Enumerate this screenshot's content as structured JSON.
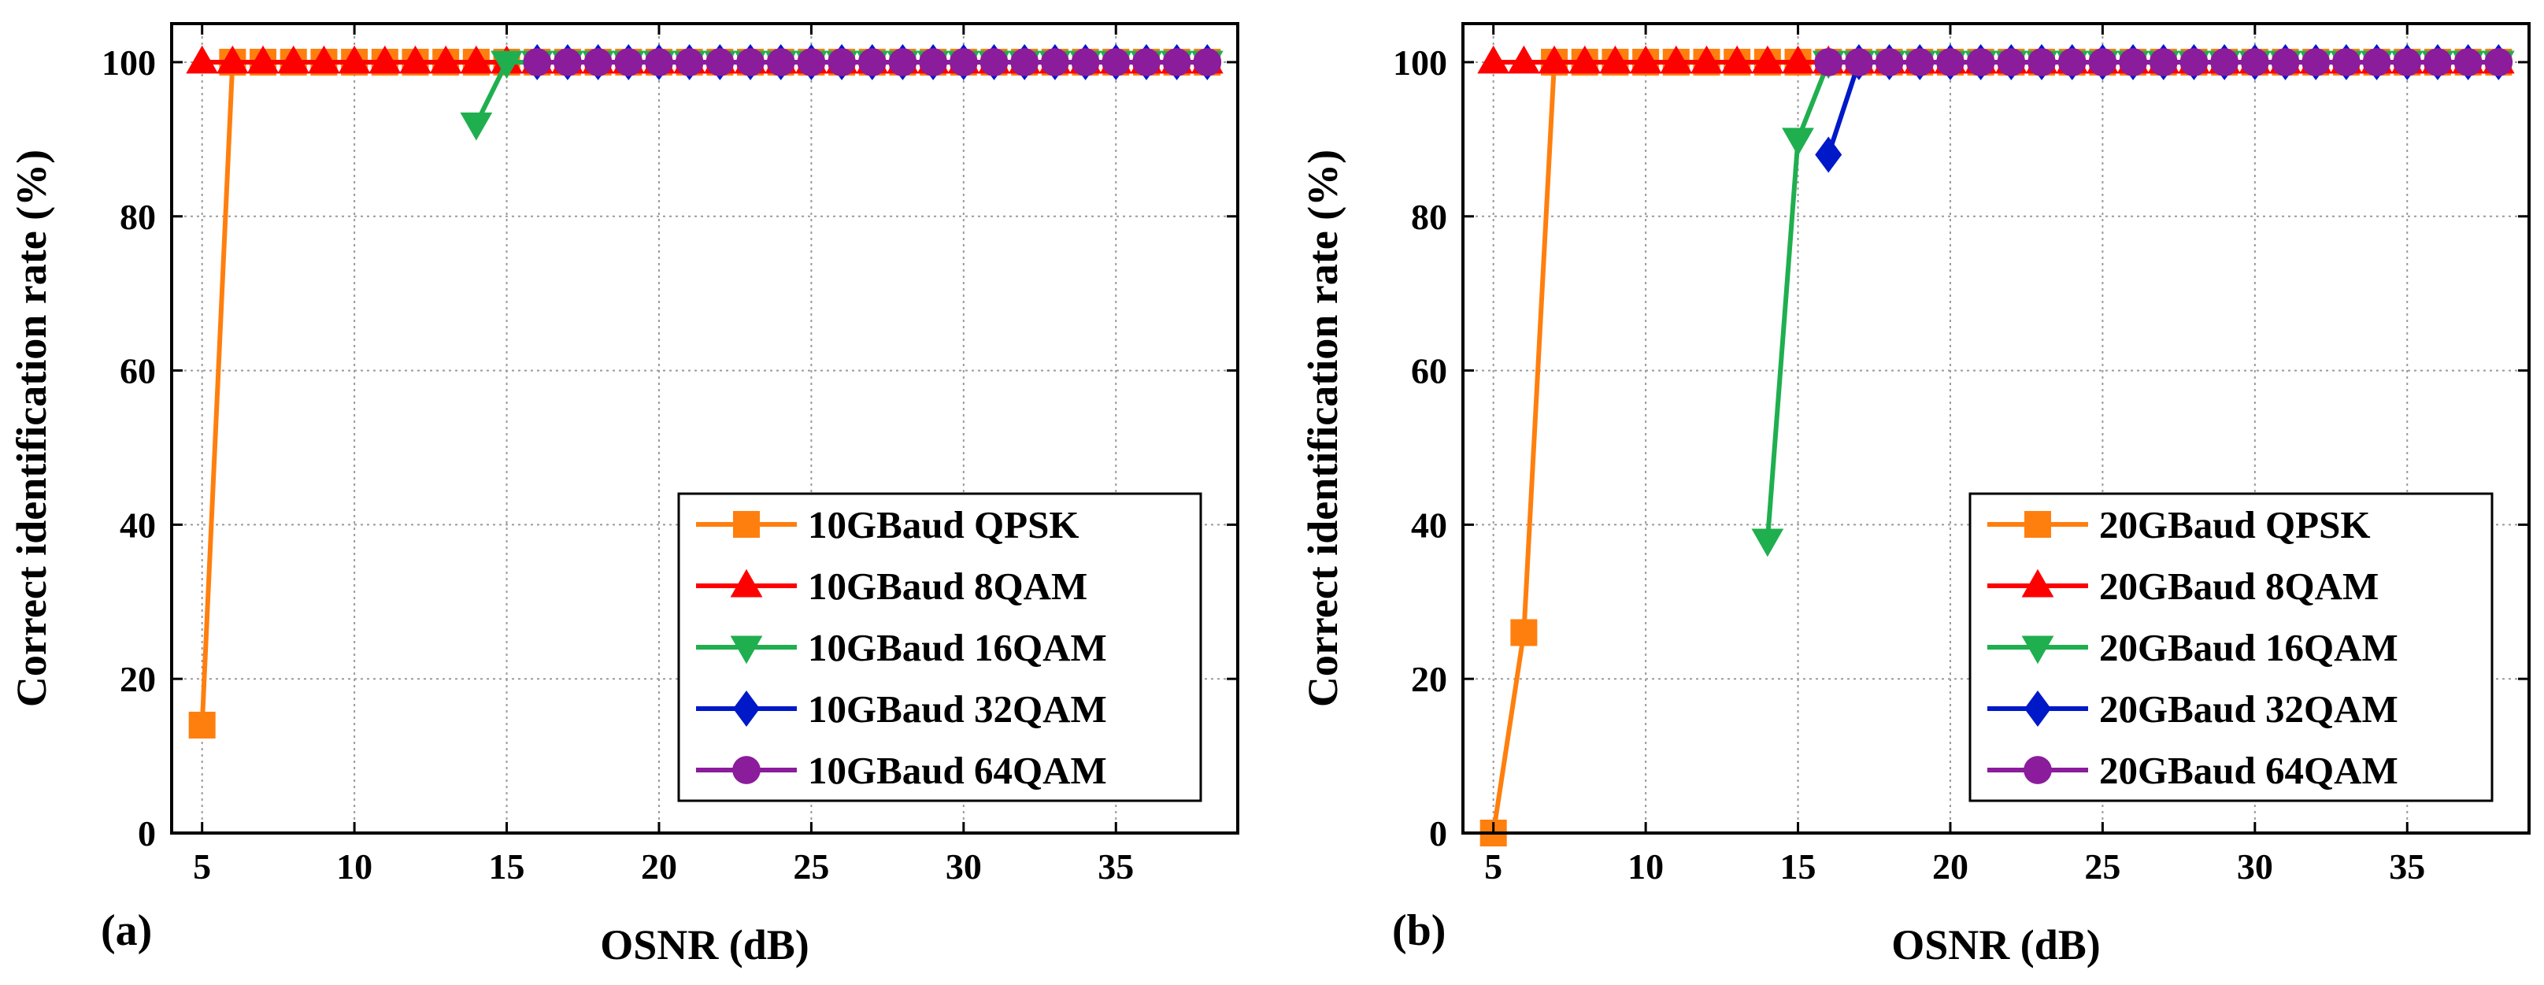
{
  "chart_data": [
    {
      "type": "line",
      "panel_label": "(a)",
      "xlabel": "OSNR (dB)",
      "ylabel": "Correct identification rate (%)",
      "xlim": [
        4,
        39
      ],
      "ylim": [
        0,
        105
      ],
      "xticks": [
        5,
        10,
        15,
        20,
        25,
        30,
        35
      ],
      "yticks": [
        0,
        20,
        40,
        60,
        80,
        100
      ],
      "grid": true,
      "legend_position": "lower-right",
      "series": [
        {
          "name": "10GBaud QPSK",
          "color": "#FF7F0E",
          "marker": "square",
          "x": [
            5,
            6,
            7,
            8,
            9,
            10,
            11,
            12,
            13,
            14,
            15,
            16,
            17,
            18,
            19,
            20,
            21,
            22,
            23,
            24,
            25,
            26,
            27,
            28,
            29,
            30,
            31,
            32,
            33,
            34,
            35,
            36,
            37,
            38
          ],
          "y": [
            14,
            100,
            100,
            100,
            100,
            100,
            100,
            100,
            100,
            100,
            100,
            100,
            100,
            100,
            100,
            100,
            100,
            100,
            100,
            100,
            100,
            100,
            100,
            100,
            100,
            100,
            100,
            100,
            100,
            100,
            100,
            100,
            100,
            100
          ]
        },
        {
          "name": "10GBaud 8QAM",
          "color": "#FF0000",
          "marker": "triangle-up",
          "x": [
            5,
            6,
            7,
            8,
            9,
            10,
            11,
            12,
            13,
            14,
            15,
            16,
            17,
            18,
            19,
            20,
            21,
            22,
            23,
            24,
            25,
            26,
            27,
            28,
            29,
            30,
            31,
            32,
            33,
            34,
            35,
            36,
            37,
            38
          ],
          "y": [
            100,
            100,
            100,
            100,
            100,
            100,
            100,
            100,
            100,
            100,
            100,
            100,
            100,
            100,
            100,
            100,
            100,
            100,
            100,
            100,
            100,
            100,
            100,
            100,
            100,
            100,
            100,
            100,
            100,
            100,
            100,
            100,
            100,
            100
          ]
        },
        {
          "name": "10GBaud 16QAM",
          "color": "#1FAF4F",
          "marker": "triangle-down",
          "x": [
            14,
            15,
            16,
            17,
            18,
            19,
            20,
            21,
            22,
            23,
            24,
            25,
            26,
            27,
            28,
            29,
            30,
            31,
            32,
            33,
            34,
            35,
            36,
            37,
            38
          ],
          "y": [
            92,
            100,
            100,
            100,
            100,
            100,
            100,
            100,
            100,
            100,
            100,
            100,
            100,
            100,
            100,
            100,
            100,
            100,
            100,
            100,
            100,
            100,
            100,
            100,
            100
          ]
        },
        {
          "name": "10GBaud 32QAM",
          "color": "#0019C8",
          "marker": "diamond",
          "x": [
            16,
            17,
            18,
            19,
            20,
            21,
            22,
            23,
            24,
            25,
            26,
            27,
            28,
            29,
            30,
            31,
            32,
            33,
            34,
            35,
            36,
            37,
            38
          ],
          "y": [
            100,
            100,
            100,
            100,
            100,
            100,
            100,
            100,
            100,
            100,
            100,
            100,
            100,
            100,
            100,
            100,
            100,
            100,
            100,
            100,
            100,
            100,
            100
          ]
        },
        {
          "name": "10GBaud 64QAM",
          "color": "#8B1C9C",
          "marker": "circle",
          "x": [
            16,
            17,
            18,
            19,
            20,
            21,
            22,
            23,
            24,
            25,
            26,
            27,
            28,
            29,
            30,
            31,
            32,
            33,
            34,
            35,
            36,
            37,
            38
          ],
          "y": [
            100,
            100,
            100,
            100,
            100,
            100,
            100,
            100,
            100,
            100,
            100,
            100,
            100,
            100,
            100,
            100,
            100,
            100,
            100,
            100,
            100,
            100,
            100
          ]
        }
      ]
    },
    {
      "type": "line",
      "panel_label": "(b)",
      "xlabel": "OSNR (dB)",
      "ylabel": "Correct identification rate (%)",
      "xlim": [
        4,
        39
      ],
      "ylim": [
        0,
        105
      ],
      "xticks": [
        5,
        10,
        15,
        20,
        25,
        30,
        35
      ],
      "yticks": [
        0,
        20,
        40,
        60,
        80,
        100
      ],
      "grid": true,
      "legend_position": "lower-right",
      "series": [
        {
          "name": "20GBaud QPSK",
          "color": "#FF7F0E",
          "marker": "square",
          "x": [
            5,
            6,
            7,
            8,
            9,
            10,
            11,
            12,
            13,
            14,
            15,
            16,
            17,
            18,
            19,
            20,
            21,
            22,
            23,
            24,
            25,
            26,
            27,
            28,
            29,
            30,
            31,
            32,
            33,
            34,
            35,
            36,
            37,
            38
          ],
          "y": [
            0,
            26,
            100,
            100,
            100,
            100,
            100,
            100,
            100,
            100,
            100,
            100,
            100,
            100,
            100,
            100,
            100,
            100,
            100,
            100,
            100,
            100,
            100,
            100,
            100,
            100,
            100,
            100,
            100,
            100,
            100,
            100,
            100,
            100
          ]
        },
        {
          "name": "20GBaud 8QAM",
          "color": "#FF0000",
          "marker": "triangle-up",
          "x": [
            5,
            6,
            7,
            8,
            9,
            10,
            11,
            12,
            13,
            14,
            15,
            16,
            17,
            18,
            19,
            20,
            21,
            22,
            23,
            24,
            25,
            26,
            27,
            28,
            29,
            30,
            31,
            32,
            33,
            34,
            35,
            36,
            37,
            38
          ],
          "y": [
            100,
            100,
            100,
            100,
            100,
            100,
            100,
            100,
            100,
            100,
            100,
            100,
            100,
            100,
            100,
            100,
            100,
            100,
            100,
            100,
            100,
            100,
            100,
            100,
            100,
            100,
            100,
            100,
            100,
            100,
            100,
            100,
            100,
            100
          ]
        },
        {
          "name": "20GBaud 16QAM",
          "color": "#1FAF4F",
          "marker": "triangle-down",
          "x": [
            14,
            15,
            16,
            17,
            18,
            19,
            20,
            21,
            22,
            23,
            24,
            25,
            26,
            27,
            28,
            29,
            30,
            31,
            32,
            33,
            34,
            35,
            36,
            37,
            38
          ],
          "y": [
            38,
            90,
            100,
            100,
            100,
            100,
            100,
            100,
            100,
            100,
            100,
            100,
            100,
            100,
            100,
            100,
            100,
            100,
            100,
            100,
            100,
            100,
            100,
            100,
            100
          ]
        },
        {
          "name": "20GBaud 32QAM",
          "color": "#0019C8",
          "marker": "diamond",
          "x": [
            16,
            17,
            18,
            19,
            20,
            21,
            22,
            23,
            24,
            25,
            26,
            27,
            28,
            29,
            30,
            31,
            32,
            33,
            34,
            35,
            36,
            37,
            38
          ],
          "y": [
            88,
            100,
            100,
            100,
            100,
            100,
            100,
            100,
            100,
            100,
            100,
            100,
            100,
            100,
            100,
            100,
            100,
            100,
            100,
            100,
            100,
            100,
            100
          ]
        },
        {
          "name": "20GBaud 64QAM",
          "color": "#8B1C9C",
          "marker": "circle",
          "x": [
            16,
            17,
            18,
            19,
            20,
            21,
            22,
            23,
            24,
            25,
            26,
            27,
            28,
            29,
            30,
            31,
            32,
            33,
            34,
            35,
            36,
            37,
            38
          ],
          "y": [
            100,
            100,
            100,
            100,
            100,
            100,
            100,
            100,
            100,
            100,
            100,
            100,
            100,
            100,
            100,
            100,
            100,
            100,
            100,
            100,
            100,
            100,
            100
          ]
        }
      ]
    }
  ]
}
